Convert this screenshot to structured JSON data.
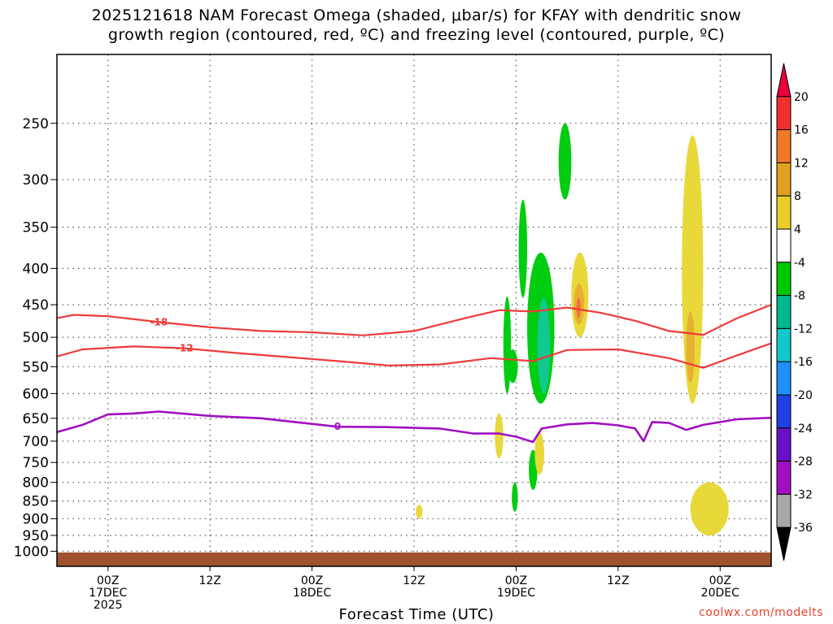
{
  "header": {
    "title_line1": "2025121618 NAM Forecast Omega (shaded, μbar/s) for KFAY with dendritic snow",
    "title_line2": "growth region (contoured, red, ºC) and freezing level (contoured, purple, ºC)"
  },
  "footer": {
    "credit": "coolwx.com/modelts"
  },
  "chart_data": {
    "type": "heatmap",
    "title": "2025121618 NAM Forecast Omega (shaded, μbar/s) for KFAY with dendritic snow growth region (contoured, red, ºC) and freezing level (contoured, purple, ºC)",
    "xlabel": "Forecast Time (UTC)",
    "ylabel": "",
    "x_range_hours": [
      -6,
      78
    ],
    "x_ticks": [
      {
        "hour": 0,
        "lines": [
          "00Z",
          "17DEC",
          "2025"
        ]
      },
      {
        "hour": 12,
        "lines": [
          "12Z"
        ]
      },
      {
        "hour": 24,
        "lines": [
          "00Z",
          "18DEC"
        ]
      },
      {
        "hour": 36,
        "lines": [
          "12Z"
        ]
      },
      {
        "hour": 48,
        "lines": [
          "00Z",
          "19DEC"
        ]
      },
      {
        "hour": 60,
        "lines": [
          "12Z"
        ]
      },
      {
        "hour": 72,
        "lines": [
          "00Z",
          "20DEC"
        ]
      }
    ],
    "y_scale": "log-pressure",
    "y_range_hPa": [
      200,
      1050
    ],
    "y_ticks": [
      250,
      300,
      350,
      400,
      450,
      500,
      550,
      600,
      650,
      700,
      750,
      800,
      850,
      900,
      950,
      1000
    ],
    "grid": true,
    "colorbar": {
      "labels": [
        20,
        16,
        12,
        8,
        4,
        -4,
        -8,
        -12,
        -16,
        -20,
        -24,
        -28,
        -32,
        -36
      ],
      "colors": [
        "#e8003c",
        "#f03030",
        "#f07828",
        "#e0a020",
        "#e8d028",
        "#ffffff",
        "#00c800",
        "#00b890",
        "#10c8c8",
        "#1e90ff",
        "#2040e0",
        "#6a10c8",
        "#a010c0",
        "#a8a8a8",
        "#000000"
      ]
    },
    "contours": [
      {
        "label": "-18",
        "color": "#f03a3a",
        "points": [
          [
            -6,
            470
          ],
          [
            -4,
            465
          ],
          [
            0,
            467
          ],
          [
            6,
            476
          ],
          [
            12,
            484
          ],
          [
            18,
            490
          ],
          [
            24,
            492
          ],
          [
            30,
            497
          ],
          [
            36,
            490
          ],
          [
            42,
            470
          ],
          [
            46,
            458
          ],
          [
            50,
            460
          ],
          [
            54,
            454
          ],
          [
            58,
            462
          ],
          [
            62,
            474
          ],
          [
            66,
            490
          ],
          [
            70,
            496
          ],
          [
            74,
            470
          ],
          [
            78,
            450
          ]
        ]
      },
      {
        "label": "-12",
        "color": "#f03a3a",
        "points": [
          [
            -6,
            532
          ],
          [
            -3,
            520
          ],
          [
            3,
            515
          ],
          [
            9,
            518
          ],
          [
            15,
            526
          ],
          [
            21,
            533
          ],
          [
            27,
            540
          ],
          [
            33,
            548
          ],
          [
            39,
            546
          ],
          [
            45,
            535
          ],
          [
            50,
            540
          ],
          [
            54,
            521
          ],
          [
            60,
            520
          ],
          [
            66,
            535
          ],
          [
            70,
            552
          ],
          [
            74,
            530
          ],
          [
            78,
            510
          ]
        ]
      },
      {
        "label": "0",
        "color": "#a010c0",
        "points": [
          [
            -6,
            680
          ],
          [
            -3,
            664
          ],
          [
            0,
            642
          ],
          [
            3,
            640
          ],
          [
            6,
            636
          ],
          [
            12,
            645
          ],
          [
            18,
            650
          ],
          [
            22,
            658
          ],
          [
            27,
            668
          ],
          [
            33,
            669
          ],
          [
            39,
            672
          ],
          [
            43,
            683
          ],
          [
            46,
            683
          ],
          [
            48,
            690
          ],
          [
            50,
            702
          ],
          [
            51,
            672
          ],
          [
            54,
            663
          ],
          [
            57,
            660
          ],
          [
            60,
            665
          ],
          [
            62,
            672
          ],
          [
            63,
            700
          ],
          [
            64,
            658
          ],
          [
            66,
            660
          ],
          [
            68,
            675
          ],
          [
            70,
            664
          ],
          [
            74,
            652
          ],
          [
            78,
            649
          ]
        ]
      }
    ],
    "shaded_regions": [
      {
        "value": -8,
        "times": [
          46.5,
          47.4
        ],
        "pressures": [
          438,
          600
        ]
      },
      {
        "value": -8,
        "times": [
          47.0,
          48.2
        ],
        "pressures": [
          520,
          580
        ]
      },
      {
        "value": -8,
        "times": [
          48.3,
          49.3
        ],
        "pressures": [
          320,
          440
        ]
      },
      {
        "value": -8,
        "times": [
          49.3,
          52.5
        ],
        "pressures": [
          380,
          620
        ]
      },
      {
        "value": -12,
        "times": [
          50.5,
          52.0
        ],
        "pressures": [
          440,
          600
        ]
      },
      {
        "value": -8,
        "times": [
          53.0,
          54.5
        ],
        "pressures": [
          250,
          320
        ]
      },
      {
        "value": -8,
        "times": [
          49.5,
          50.5
        ],
        "pressures": [
          720,
          820
        ]
      },
      {
        "value": -8,
        "times": [
          47.5,
          48.2
        ],
        "pressures": [
          800,
          880
        ]
      },
      {
        "value": 4,
        "times": [
          54.5,
          56.5
        ],
        "pressures": [
          380,
          500
        ]
      },
      {
        "value": 8,
        "times": [
          54.8,
          56.0
        ],
        "pressures": [
          420,
          480
        ]
      },
      {
        "value": 12,
        "times": [
          55.1,
          55.6
        ],
        "pressures": [
          440,
          470
        ]
      },
      {
        "value": 4,
        "times": [
          67.5,
          70.0
        ],
        "pressures": [
          260,
          620
        ]
      },
      {
        "value": 8,
        "times": [
          68.0,
          69.0
        ],
        "pressures": [
          460,
          580
        ]
      },
      {
        "value": 4,
        "times": [
          68.5,
          73.0
        ],
        "pressures": [
          800,
          950
        ]
      },
      {
        "value": 4,
        "times": [
          45.5,
          46.5
        ],
        "pressures": [
          640,
          740
        ]
      },
      {
        "value": 4,
        "times": [
          50.2,
          51.3
        ],
        "pressures": [
          680,
          780
        ]
      },
      {
        "value": 4,
        "times": [
          36.2,
          37.0
        ],
        "pressures": [
          860,
          900
        ]
      }
    ]
  }
}
